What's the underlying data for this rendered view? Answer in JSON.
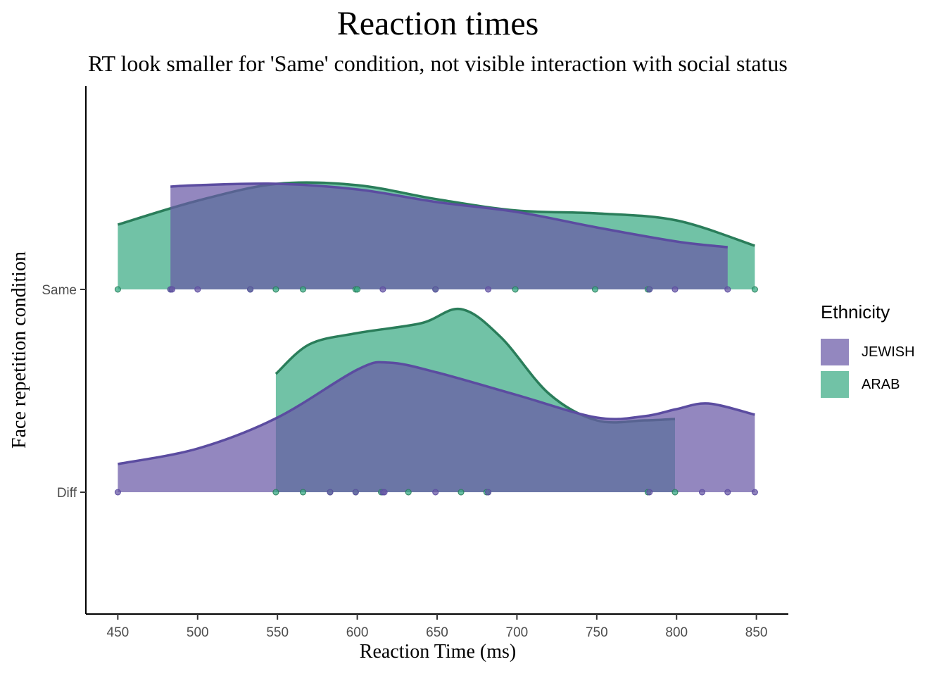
{
  "chart_data": {
    "type": "ridgeline",
    "title": "Reaction times",
    "subtitle": "RT look smaller for 'Same' condition, not visible interaction with social status",
    "xlabel": "Reaction Time (ms)",
    "ylabel": "Face repetition condition",
    "xlim": [
      430,
      870
    ],
    "x_ticks": [
      450,
      500,
      550,
      600,
      650,
      700,
      750,
      800,
      850
    ],
    "categories": [
      "Same",
      "Diff"
    ],
    "legend": {
      "title": "Ethnicity",
      "position": "right"
    },
    "grid": false,
    "series": [
      {
        "name": "JEWISH",
        "color": "#6a59a6",
        "line_color": "#5b4ca0",
        "Same": {
          "points": [
            483,
            484,
            500,
            533,
            616,
            649,
            682,
            783,
            799,
            832
          ],
          "density_x": [
            483,
            500,
            550,
            600,
            650,
            700,
            750,
            800,
            832
          ],
          "density": [
            0.73,
            0.74,
            0.75,
            0.71,
            0.62,
            0.55,
            0.44,
            0.34,
            0.3
          ]
        },
        "Diff": {
          "points": [
            450,
            583,
            599,
            616,
            617,
            649,
            682,
            783,
            816,
            832,
            849
          ],
          "density_x": [
            450,
            500,
            550,
            600,
            620,
            650,
            700,
            750,
            780,
            800,
            820,
            849
          ],
          "density": [
            0.2,
            0.31,
            0.53,
            0.87,
            0.92,
            0.85,
            0.69,
            0.53,
            0.54,
            0.59,
            0.63,
            0.55
          ]
        }
      },
      {
        "name": "ARAB",
        "color": "#3aab84",
        "line_color": "#2a7d5a",
        "Same": {
          "points": [
            450,
            483,
            533,
            549,
            566,
            599,
            600,
            649,
            699,
            749,
            782,
            783,
            849
          ],
          "density_x": [
            450,
            500,
            550,
            600,
            650,
            700,
            750,
            800,
            849
          ],
          "density": [
            0.46,
            0.63,
            0.75,
            0.74,
            0.64,
            0.56,
            0.54,
            0.49,
            0.31
          ]
        },
        "Diff": {
          "points": [
            549,
            566,
            583,
            599,
            615,
            632,
            665,
            682,
            681,
            782,
            799
          ],
          "density_x": [
            549,
            570,
            600,
            640,
            665,
            690,
            720,
            750,
            780,
            799
          ],
          "density": [
            0.84,
            1.05,
            1.13,
            1.2,
            1.3,
            1.1,
            0.7,
            0.51,
            0.51,
            0.52
          ]
        }
      }
    ]
  }
}
